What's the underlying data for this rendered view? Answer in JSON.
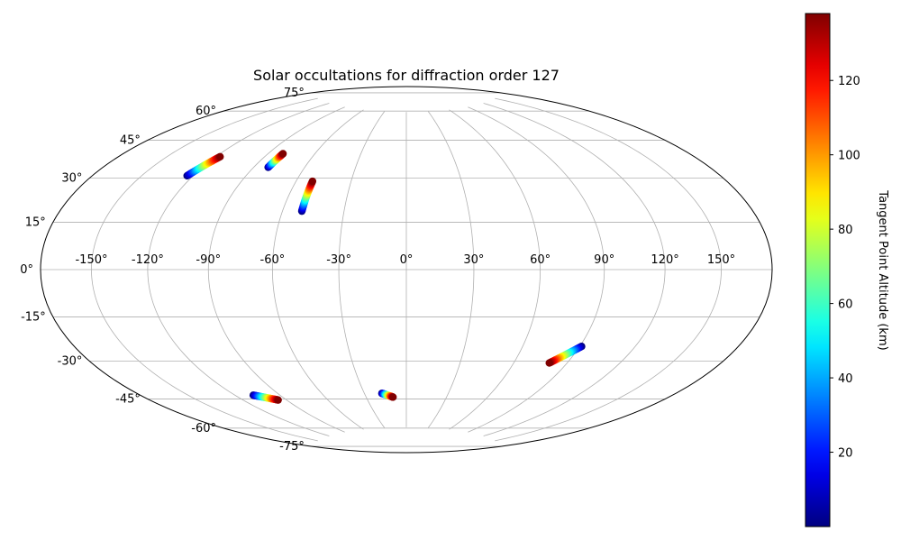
{
  "chart_data": {
    "type": "scatter",
    "projection": "hammer",
    "title": "Solar occultations for diffraction order 127",
    "grid": true,
    "longitude_ticks": [
      -150,
      -120,
      -90,
      -60,
      -30,
      0,
      30,
      60,
      90,
      120,
      150
    ],
    "longitude_tick_labels": [
      "-150°",
      "-120°",
      "-90°",
      "-60°",
      "-30°",
      "0°",
      "30°",
      "60°",
      "90°",
      "120°",
      "150°"
    ],
    "latitude_ticks": [
      75,
      60,
      45,
      30,
      15,
      0,
      -15,
      -30,
      -45,
      -60,
      -75
    ],
    "latitude_tick_labels": [
      "75°",
      "60°",
      "45°",
      "30°",
      "15°",
      "0°",
      "-15°",
      "-30°",
      "-45°",
      "-60°",
      "-75°"
    ],
    "colorbar": {
      "label": "Tangent Point Altitude (km)",
      "colormap": "jet",
      "range": [
        0,
        138
      ],
      "ticks": [
        20,
        40,
        60,
        80,
        100,
        120
      ],
      "tick_labels": [
        "20",
        "40",
        "60",
        "80",
        "100",
        "120"
      ]
    },
    "series": [
      {
        "lon_start": -123.5,
        "lat_start": 37.0,
        "lon_end": -117.5,
        "lat_end": 46.0,
        "alt_start": 0,
        "alt_end": 138
      },
      {
        "lon_start": -81.5,
        "lat_start": 44.0,
        "lon_end": -80.5,
        "lat_end": 50.5,
        "alt_start": 0,
        "alt_end": 138
      },
      {
        "lon_start": -50.5,
        "lat_start": 25.5,
        "lon_end": -51.0,
        "lat_end": 39.0,
        "alt_start": 0,
        "alt_end": 138
      },
      {
        "lon_start": -108.0,
        "lat_start": -53.0,
        "lon_end": -96.0,
        "lat_end": -56.5,
        "alt_start": 0,
        "alt_end": 138
      },
      {
        "lon_start": -17.5,
        "lat_start": -57.0,
        "lon_end": -10.0,
        "lat_end": -59.0,
        "alt_start": 0,
        "alt_end": 138
      },
      {
        "lon_start": 91.0,
        "lat_start": -32.0,
        "lon_end": 80.0,
        "lat_end": -40.0,
        "alt_start": 0,
        "alt_end": 138
      }
    ]
  }
}
